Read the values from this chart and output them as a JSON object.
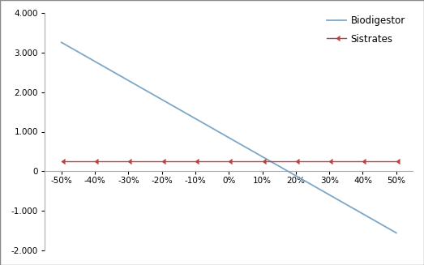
{
  "x_labels": [
    "-50%",
    "-40%",
    "-30%",
    "-20%",
    "-10%",
    "0%",
    "10%",
    "20%",
    "30%",
    "40%",
    "50%"
  ],
  "x_values": [
    -0.5,
    -0.4,
    -0.3,
    -0.2,
    -0.1,
    0.0,
    0.1,
    0.2,
    0.3,
    0.4,
    0.5
  ],
  "biodigestor_values": [
    3250,
    2770,
    2290,
    1810,
    1330,
    850,
    370,
    -110,
    -590,
    -1070,
    -1550
  ],
  "sistrates_values": [
    255,
    255,
    255,
    255,
    255,
    255,
    255,
    255,
    255,
    255,
    255
  ],
  "biodigestor_color": "#7BA7C9",
  "sistrates_color": "#B94040",
  "legend_labels": [
    "Biodigestor",
    "Sistrates"
  ],
  "ylim": [
    -2000,
    4000
  ],
  "yticks": [
    -2000,
    -1000,
    0,
    1000,
    2000,
    3000,
    4000
  ],
  "xlim": [
    -0.55,
    0.55
  ],
  "background_color": "#ffffff",
  "spine_color": "#AAAAAA",
  "border_color": "#888888",
  "tick_fontsize": 7.5,
  "legend_fontsize": 8.5
}
